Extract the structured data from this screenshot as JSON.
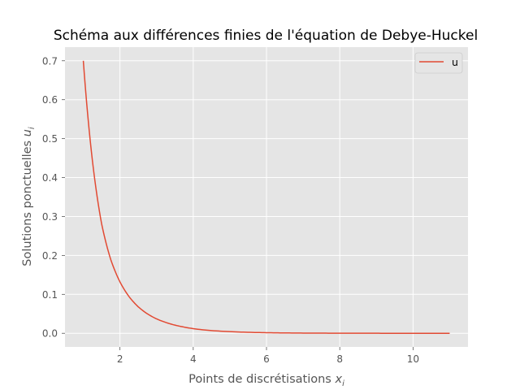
{
  "chart_data": {
    "type": "line",
    "title": "Schéma aux différences finies de l'équation de Debye-Huckel",
    "xlabel": {
      "text": "Points de discrétisations ",
      "var": "x",
      "sub": "i"
    },
    "ylabel": {
      "text": "Solutions ponctuelles ",
      "var": "u",
      "sub": "i"
    },
    "xlim": [
      0.5,
      11.5
    ],
    "ylim": [
      -0.035,
      0.735
    ],
    "xticks": [
      2,
      4,
      6,
      8,
      10
    ],
    "yticks": [
      0.0,
      0.1,
      0.2,
      0.3,
      0.4,
      0.5,
      0.6,
      0.7
    ],
    "ytick_labels": [
      "0.0",
      "0.1",
      "0.2",
      "0.3",
      "0.4",
      "0.5",
      "0.6",
      "0.7"
    ],
    "grid": true,
    "legend_position": "top-right",
    "series": [
      {
        "name": "u",
        "color": "#E24A33",
        "x": [
          1.0,
          1.25,
          1.5,
          1.75,
          2.0,
          2.25,
          2.5,
          2.75,
          3.0,
          3.25,
          3.5,
          3.75,
          4.0,
          4.5,
          5.0,
          5.5,
          6.0,
          6.5,
          7.0,
          7.5,
          8.0,
          8.5,
          9.0,
          9.5,
          10.0,
          10.5,
          11.0
        ],
        "y": [
          0.7,
          0.442,
          0.281,
          0.189,
          0.132,
          0.094,
          0.068,
          0.05,
          0.037,
          0.028,
          0.021,
          0.016,
          0.012,
          0.007,
          0.0043,
          0.0026,
          0.0016,
          0.001,
          0.0006,
          0.0004,
          0.00025,
          0.00015,
          0.0001,
          5e-05,
          3e-05,
          1e-05,
          0.0
        ]
      }
    ]
  }
}
